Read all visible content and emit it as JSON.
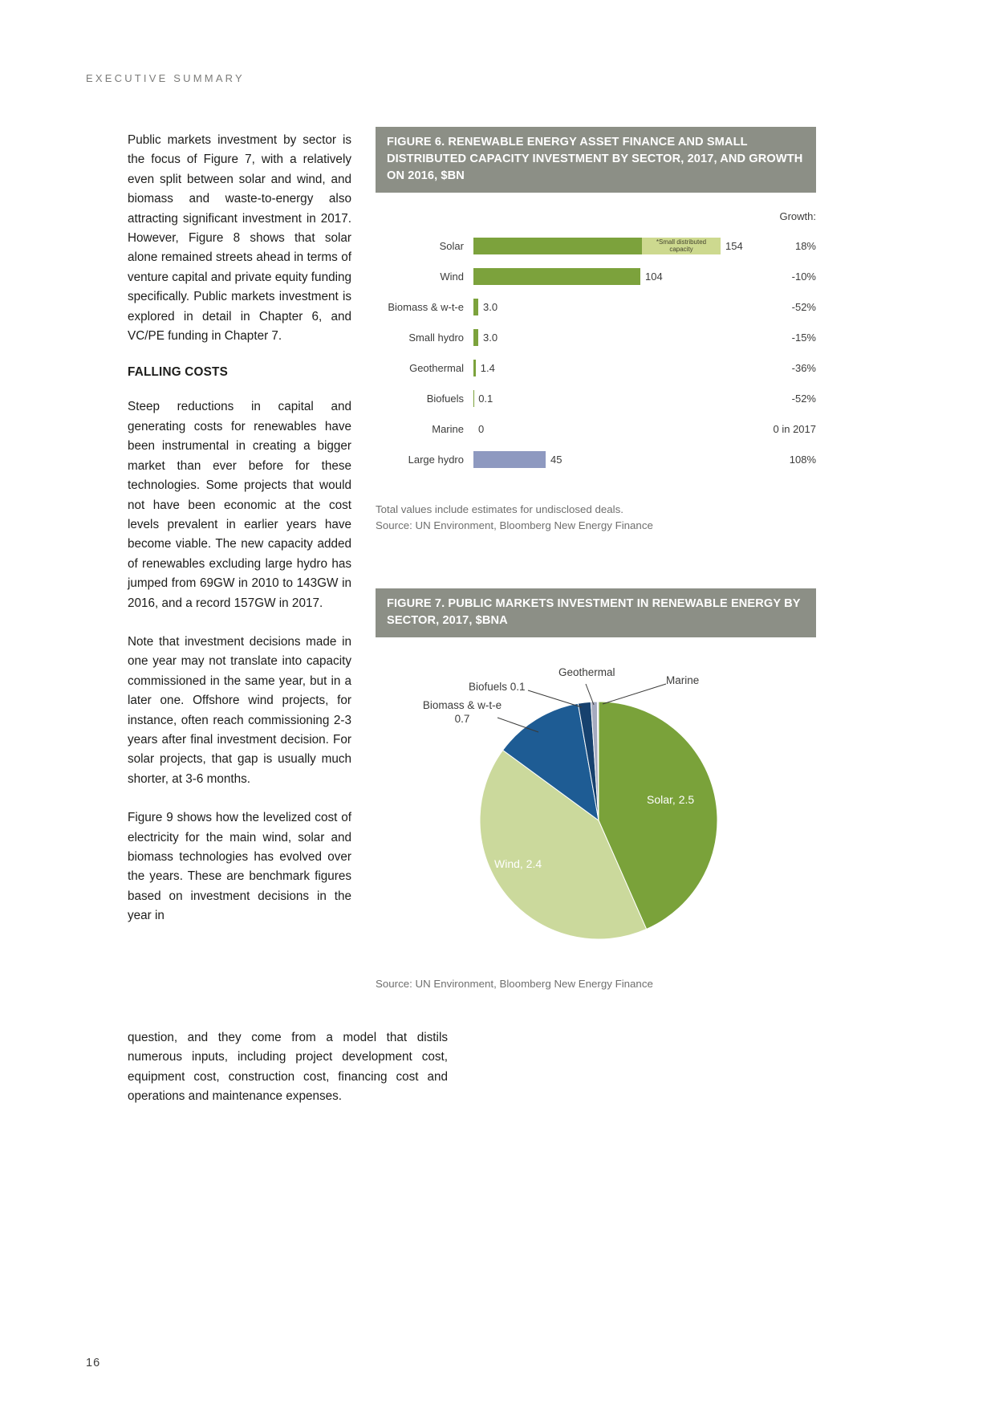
{
  "page": {
    "eyebrow": "EXECUTIVE SUMMARY",
    "page_number": "16"
  },
  "article": {
    "para1": "Public markets investment by sector is the focus of Figure 7, with a relatively even split between solar and wind, and biomass and waste-to-energy also attracting significant investment in 2017. However, Figure 8 shows that solar alone remained streets ahead in terms of venture capital and private equity funding specifically. Public markets investment is explored in detail in Chapter 6, and VC/PE funding in Chapter 7.",
    "falling_costs_heading": "FALLING COSTS",
    "para2": "Steep reductions in capital and generating costs for renewables have been instrumental in creating a bigger market than ever before for these technologies. Some projects that would not have been economic at the cost levels prevalent in earlier years have become viable. The new capacity added of renewables excluding large hydro has jumped from 69GW in 2010 to 143GW in 2016, and a record 157GW in 2017.",
    "para3": "Note that investment decisions made in one year may not translate into capacity commissioned in the same year, but in a later one. Offshore wind projects, for instance, often reach commissioning 2-3 years after final investment decision. For solar projects, that gap is usually much shorter, at 3-6 months.",
    "para4_narrow": "Figure 9 shows how the levelized cost of electricity for the main wind, solar and biomass technologies has evolved over the years. These are benchmark figures based on investment decisions in the year in",
    "para4_wide": "question, and they come from a model that distils numerous inputs, including project development cost, equipment cost, construction cost, financing cost and operations and maintenance expenses."
  },
  "figure6": {
    "title": "FIGURE 6. RENEWABLE ENERGY ASSET FINANCE AND SMALL DISTRIBUTED CAPACITY INVESTMENT BY SECTOR, 2017, AND GROWTH ON 2016, $BN",
    "note": "Total values include estimates for undisclosed deals.",
    "source": "Source: UN Environment, Bloomberg New Energy Finance"
  },
  "figure7": {
    "title": "FIGURE 7. PUBLIC MARKETS INVESTMENT IN RENEWABLE ENERGY BY SECTOR, 2017, $BNA",
    "source": "Source: UN Environment, Bloomberg New Energy Finance",
    "labels": {
      "geothermal": "Geothermal",
      "marine": "Marine",
      "biofuels": "Biofuels 0.1",
      "biomass_line1": "Biomass & w-t-e",
      "biomass_line2": "0.7",
      "solar": "Solar, 2.5",
      "wind": "Wind, 2.4"
    }
  },
  "chart_data": [
    {
      "figure": "Figure 6",
      "type": "bar",
      "orientation": "horizontal",
      "title": "FIGURE 6. RENEWABLE ENERGY ASSET FINANCE AND SMALL DISTRIBUTED CAPACITY INVESTMENT BY SECTOR, 2017, AND GROWTH ON 2016, $BN",
      "growth_header": "Growth:",
      "categories": [
        "Solar",
        "Wind",
        "Biomass & w-t-e",
        "Small hydro",
        "Geothermal",
        "Biofuels",
        "Marine",
        "Large hydro"
      ],
      "values": [
        154,
        104,
        3.0,
        3.0,
        1.4,
        0.1,
        0,
        45
      ],
      "value_labels": [
        "154",
        "104",
        "3.0",
        "3.0",
        "1.4",
        "0.1",
        "0",
        "45"
      ],
      "growth": [
        "18%",
        "-10%",
        "-52%",
        "-15%",
        "-36%",
        "-52%",
        "0 in 2017",
        "108%"
      ],
      "solar_segments": {
        "asset_finance": 105,
        "small_distributed": 49
      },
      "small_distributed_label": "*Small distributed capacity",
      "colors": {
        "bar": "#7ca23c",
        "small_distributed": "#cdd98f",
        "large_hydro": "#8e99c0"
      },
      "xlim": [
        0,
        180
      ]
    },
    {
      "figure": "Figure 7",
      "type": "pie",
      "title": "FIGURE 7. PUBLIC MARKETS INVESTMENT IN RENEWABLE ENERGY BY SECTOR, 2017, $BNA",
      "slices": [
        {
          "name": "Solar",
          "value": 2.5,
          "color": "#7aa23a"
        },
        {
          "name": "Wind",
          "value": 2.4,
          "color": "#cbd99c"
        },
        {
          "name": "Biomass & w-t-e",
          "value": 0.7,
          "color": "#1e5c94"
        },
        {
          "name": "Biofuels",
          "value": 0.1,
          "color": "#16416e"
        },
        {
          "name": "Geothermal",
          "value": 0.05,
          "color": "#a5aabf"
        },
        {
          "name": "Marine",
          "value": 0.01,
          "color": "#dcdfe6"
        }
      ]
    }
  ]
}
